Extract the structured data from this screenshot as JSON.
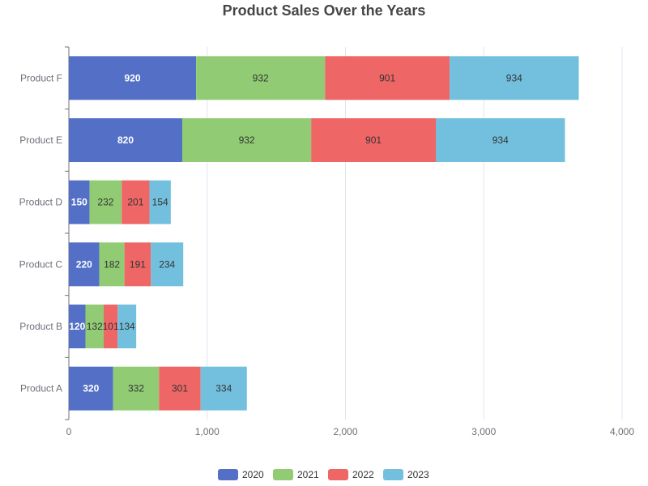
{
  "chart_data": {
    "type": "bar",
    "orientation": "horizontal",
    "stacked": true,
    "title": "Product Sales Over the Years",
    "categories": [
      "Product A",
      "Product B",
      "Product C",
      "Product D",
      "Product E",
      "Product F"
    ],
    "series": [
      {
        "name": "2020",
        "color": "#5470c6",
        "label_color": "#ffffff",
        "values": [
          320,
          120,
          220,
          150,
          820,
          920
        ]
      },
      {
        "name": "2021",
        "color": "#91cc75",
        "label_color": "#333333",
        "values": [
          332,
          132,
          182,
          232,
          932,
          932
        ]
      },
      {
        "name": "2022",
        "color": "#ee6666",
        "label_color": "#333333",
        "values": [
          301,
          101,
          191,
          201,
          901,
          901
        ]
      },
      {
        "name": "2023",
        "color": "#73c0de",
        "label_color": "#333333",
        "values": [
          334,
          134,
          234,
          154,
          934,
          934
        ]
      }
    ],
    "x_ticks": [
      0,
      1000,
      2000,
      3000,
      4000
    ],
    "x_tick_labels": [
      "0",
      "1,000",
      "2,000",
      "3,000",
      "4,000"
    ],
    "xlim": [
      0,
      4000
    ],
    "grid": true,
    "legend_position": "bottom"
  }
}
